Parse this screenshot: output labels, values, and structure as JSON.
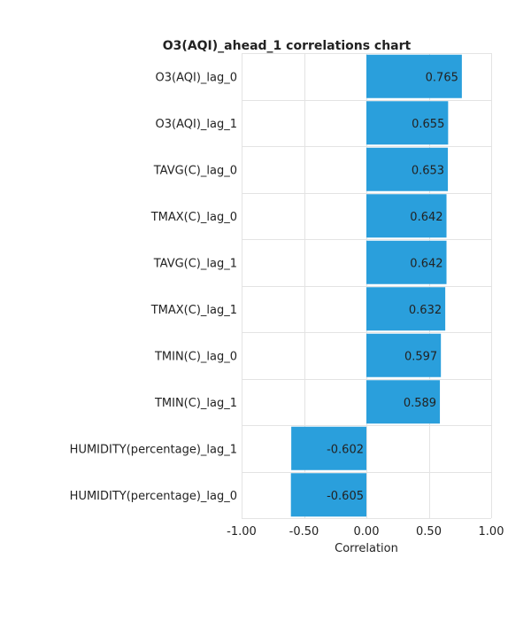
{
  "chart_data": {
    "type": "bar",
    "orientation": "horizontal",
    "title": "O3(AQI)_ahead_1 correlations chart",
    "xlabel": "Correlation",
    "ylabel": "",
    "xlim": [
      -1.0,
      1.0
    ],
    "x_ticks": [
      "-1.00",
      "-0.50",
      "0.00",
      "0.50",
      "1.00"
    ],
    "x_tick_values": [
      -1.0,
      -0.5,
      0.0,
      0.5,
      1.0
    ],
    "grid": true,
    "legend": "none",
    "bar_color": "#2a9fdc",
    "categories": [
      "O3(AQI)_lag_0",
      "O3(AQI)_lag_1",
      "TAVG(C)_lag_0",
      "TMAX(C)_lag_0",
      "TAVG(C)_lag_1",
      "TMAX(C)_lag_1",
      "TMIN(C)_lag_0",
      "TMIN(C)_lag_1",
      "HUMIDITY(percentage)_lag_1",
      "HUMIDITY(percentage)_lag_0"
    ],
    "values": [
      0.765,
      0.655,
      0.653,
      0.642,
      0.642,
      0.632,
      0.597,
      0.589,
      -0.602,
      -0.605
    ],
    "data_labels": [
      "0.765",
      "0.655",
      "0.653",
      "0.642",
      "0.642",
      "0.632",
      "0.597",
      "0.589",
      "-0.602",
      "-0.605"
    ]
  }
}
